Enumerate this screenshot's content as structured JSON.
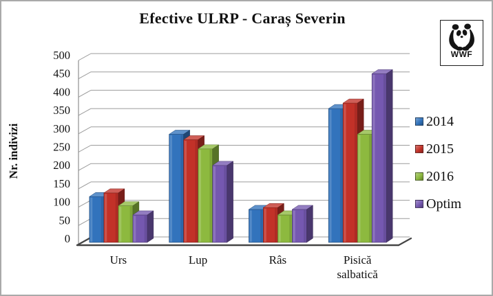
{
  "title": "Efective ULRP - Caraș Severin",
  "logo": {
    "label": "WWF"
  },
  "y_axis": {
    "title": "Nr. indivizi"
  },
  "chart_data": {
    "type": "bar",
    "style": "3d-clustered-column",
    "title": "Efective ULRP - Caraș Severin",
    "ylabel": "Nr. indivizi",
    "xlabel": "",
    "ylim": [
      0,
      500
    ],
    "ytick_step": 50,
    "y_tick_labels": [
      "0",
      "50",
      "100",
      "150",
      "200",
      "250",
      "300",
      "350",
      "400",
      "450",
      "500"
    ],
    "grid": true,
    "legend_position": "right",
    "categories": [
      "Urs",
      "Lup",
      "Râs",
      "Pisică salbatică"
    ],
    "series": [
      {
        "name": "2014",
        "color": "#3273bc",
        "values": [
          125,
          295,
          90,
          365
        ]
      },
      {
        "name": "2015",
        "color": "#c23128",
        "values": [
          135,
          280,
          95,
          380
        ]
      },
      {
        "name": "2016",
        "color": "#8db93f",
        "values": [
          100,
          255,
          75,
          295
        ]
      },
      {
        "name": "Optim",
        "color": "#7558b0",
        "values": [
          75,
          210,
          90,
          460
        ]
      }
    ],
    "colors": {
      "gridline": "#9b9b9b",
      "axis": "#8f8f8f",
      "floor_edge": "#454545",
      "text": "#111111"
    }
  }
}
